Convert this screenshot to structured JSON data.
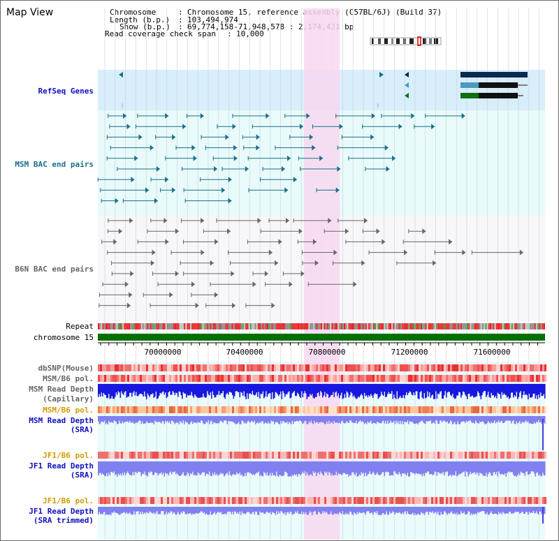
{
  "window": {
    "title": "Map View"
  },
  "info": {
    "chromosome_label": "Chromosome",
    "chromosome_value": "Chromosome 15, reference assembly (C57BL/6J) (Build 37)",
    "length_label": "Length (b.p.)",
    "length_value": "103,494,974",
    "show_label": "Show (b.p.)",
    "show_value": "69,774,158-71,948,578 : 2,174,421 bp",
    "coverage_label": "Read coverage check span",
    "coverage_value": "10,000"
  },
  "tracks": {
    "refseq": "RefSeq Genes",
    "msm_bac": "MSM BAC end pairs",
    "b6n_bac": "B6N BAC end pairs",
    "repeat": "Repeat",
    "chromosome": "chromosome 15",
    "dbsnp": "dbSNP(Mouse)",
    "msm_b6_pol_1": "MSM/B6 pol.",
    "msm_read_depth_cap_1": "MSM Read Depth",
    "msm_read_depth_cap_2": "(Capillary)",
    "msm_b6_pol_2": "MSM/B6 pol.",
    "msm_read_depth_sra_1": "MSM Read Depth",
    "msm_read_depth_sra_2": "(SRA)",
    "jf1_b6_pol_1": "JF1/B6 pol.",
    "jf1_read_depth_sra_1": "JF1 Read Depth",
    "jf1_read_depth_sra_2": "(SRA)",
    "jf1_b6_pol_2": "JF1/B6 pol.",
    "jf1_read_depth_trim_1": "JF1 Read Depth",
    "jf1_read_depth_trim_2": "(SRA trimmed)"
  },
  "axis": {
    "ticks": [
      "70000000",
      "70400000",
      "70800000",
      "71200000",
      "71600000"
    ]
  },
  "colors": {
    "refseq_bg": "#d8eefb",
    "bac_bg": "#e8fafa",
    "highlight": "#f8d8f0",
    "chromosome_bar": "#007000",
    "depth_blue": "#1818e0",
    "depth_light": "#8080f0",
    "snp_red": "#e83030",
    "teal": "#186f8a",
    "gray": "#666666"
  }
}
